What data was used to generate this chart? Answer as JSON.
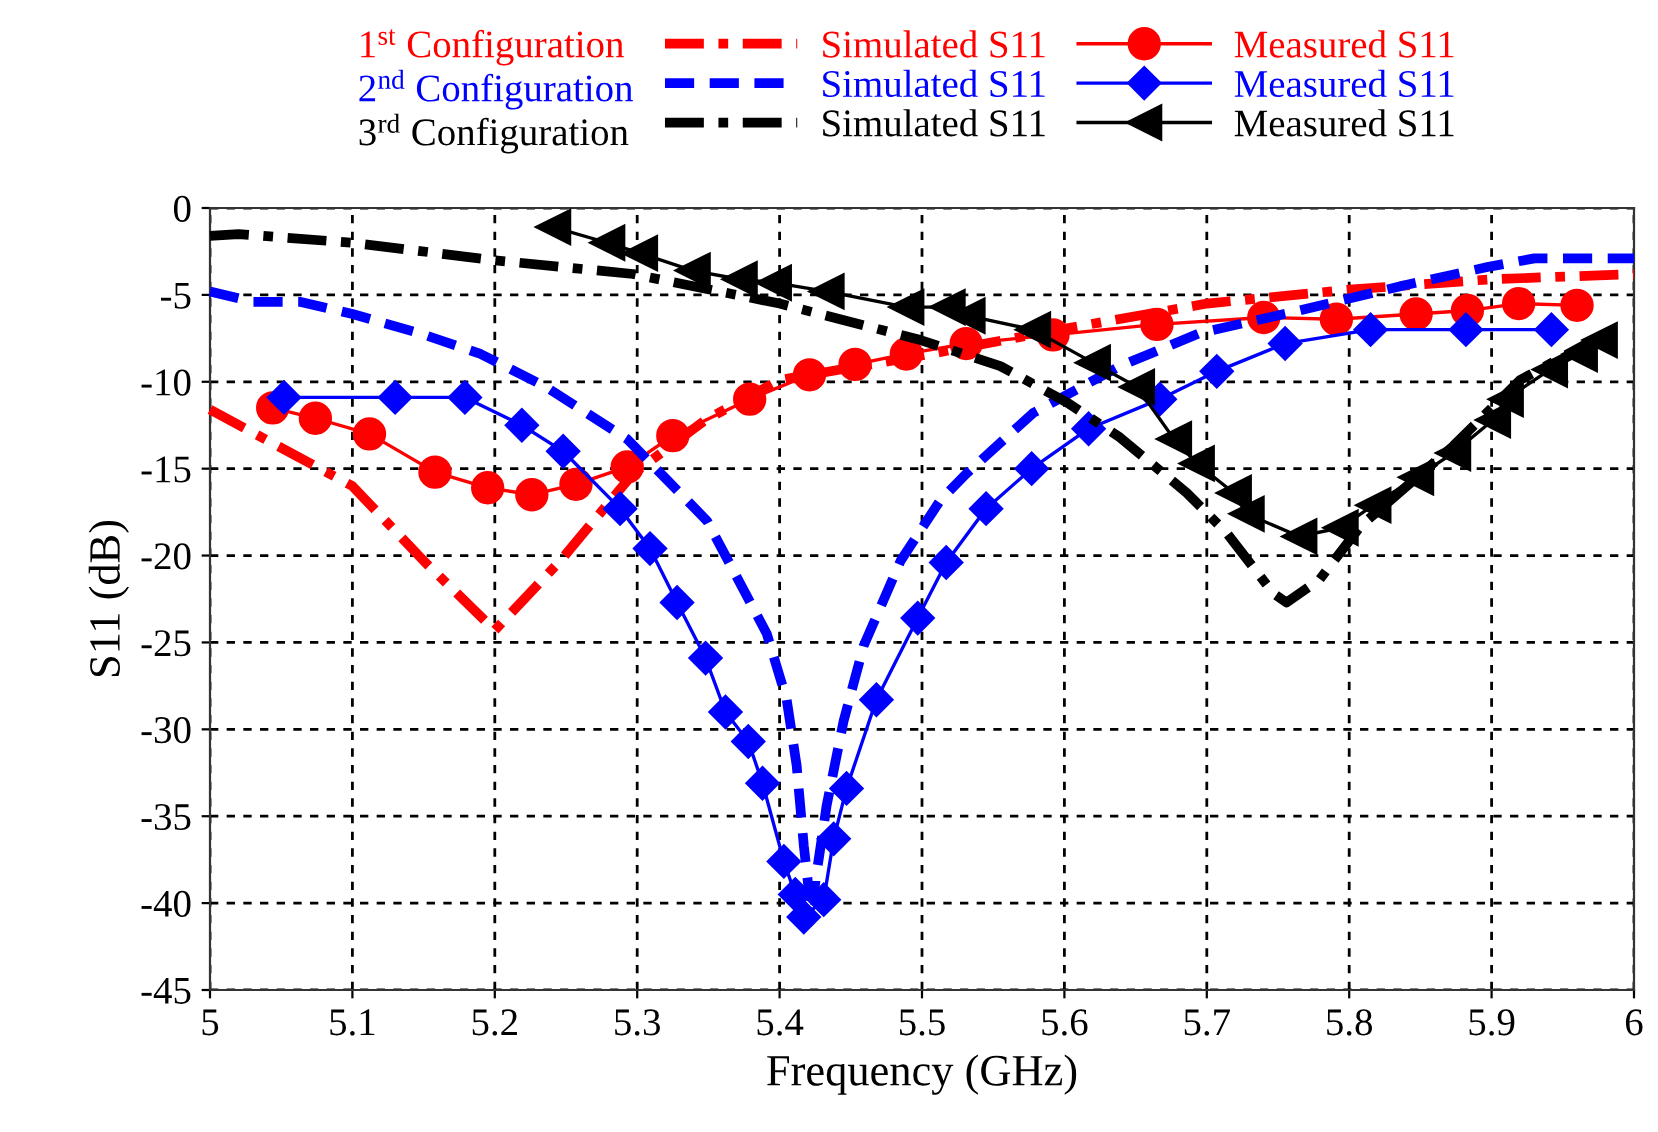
{
  "chart_data": {
    "type": "line",
    "xlabel": "Frequency (GHz)",
    "ylabel": "S11 (dB)",
    "xlim": [
      5,
      6
    ],
    "ylim": [
      -45,
      0
    ],
    "xticks": [
      5,
      5.1,
      5.2,
      5.3,
      5.4,
      5.5,
      5.6,
      5.7,
      5.8,
      5.9,
      6
    ],
    "yticks": [
      -45,
      -40,
      -35,
      -30,
      -25,
      -20,
      -15,
      -10,
      -5,
      0
    ],
    "grid": true,
    "legend": "top",
    "annotations": [
      "1$^{st}$ Configuration",
      "2$^{nd}$ Configuration",
      "3$^{rd}$ Configuration"
    ],
    "series": [
      {
        "name": "Simulated S11",
        "color": "#ff0000",
        "line_style": "dashdot",
        "marker": "none",
        "x": [
          5.0,
          5.1,
          5.15,
          5.2,
          5.246,
          5.297,
          5.348,
          5.4,
          5.499,
          5.597,
          5.7,
          5.8,
          5.9,
          6.0
        ],
        "values": [
          -11.6,
          -16.0,
          -20.3,
          -24.3,
          -20.3,
          -15.3,
          -12.2,
          -9.9,
          -8.5,
          -7.0,
          -5.5,
          -4.7,
          -4.1,
          -3.8
        ]
      },
      {
        "name": "Measured S11",
        "color": "#ff0000",
        "line_style": "solid",
        "marker": "circle",
        "x": [
          5.044,
          5.074,
          5.112,
          5.158,
          5.195,
          5.226,
          5.257,
          5.293,
          5.325,
          5.379,
          5.421,
          5.453,
          5.489,
          5.531,
          5.592,
          5.665,
          5.74,
          5.791,
          5.847,
          5.883,
          5.919,
          5.96
        ],
        "values": [
          -11.5,
          -12.1,
          -13.0,
          -15.2,
          -16.1,
          -16.5,
          -15.9,
          -14.9,
          -13.1,
          -11.0,
          -9.6,
          -9.0,
          -8.4,
          -7.8,
          -7.3,
          -6.7,
          -6.3,
          -6.4,
          -6.1,
          -5.9,
          -5.5,
          -5.6
        ]
      },
      {
        "name": "Simulated S11",
        "color": "#0000ff",
        "line_style": "dashed",
        "marker": "none",
        "x": [
          5.0,
          5.03,
          5.063,
          5.1,
          5.147,
          5.19,
          5.236,
          5.293,
          5.349,
          5.391,
          5.405,
          5.412,
          5.417,
          5.42,
          5.424,
          5.433,
          5.445,
          5.459,
          5.485,
          5.513,
          5.531,
          5.578,
          5.639,
          5.695,
          5.765,
          5.836,
          5.897,
          5.93,
          6.0
        ],
        "values": [
          -4.8,
          -5.4,
          -5.4,
          -6.1,
          -7.2,
          -8.4,
          -10.3,
          -13.3,
          -18.0,
          -24.5,
          -28.3,
          -32.1,
          -36.7,
          -38.9,
          -39.4,
          -34.4,
          -29.5,
          -25.2,
          -20.3,
          -16.8,
          -15.3,
          -11.8,
          -9.1,
          -7.2,
          -5.9,
          -4.5,
          -3.4,
          -2.9,
          -2.9
        ]
      },
      {
        "name": "Measured S11",
        "color": "#0000ff",
        "line_style": "solid",
        "marker": "diamond",
        "x": [
          5.052,
          5.13,
          5.179,
          5.219,
          5.248,
          5.288,
          5.309,
          5.328,
          5.348,
          5.362,
          5.378,
          5.388,
          5.403,
          5.411,
          5.417,
          5.431,
          5.438,
          5.447,
          5.468,
          5.497,
          5.517,
          5.545,
          5.577,
          5.617,
          5.667,
          5.707,
          5.755,
          5.815,
          5.882,
          5.942
        ],
        "values": [
          -10.9,
          -10.9,
          -10.9,
          -12.5,
          -14.0,
          -17.3,
          -19.6,
          -22.7,
          -25.9,
          -29.0,
          -30.7,
          -33.1,
          -37.6,
          -39.5,
          -40.8,
          -39.8,
          -36.3,
          -33.4,
          -28.3,
          -23.6,
          -20.4,
          -17.3,
          -15.0,
          -12.7,
          -11.0,
          -9.4,
          -7.8,
          -7.0,
          -7.0,
          -7.0
        ]
      },
      {
        "name": "Simulated S11",
        "color": "#000000",
        "line_style": "dashdot",
        "marker": "none",
        "x": [
          5.0,
          5.02,
          5.1,
          5.199,
          5.297,
          5.4,
          5.499,
          5.555,
          5.602,
          5.639,
          5.686,
          5.714,
          5.747,
          5.756,
          5.779,
          5.808,
          5.873,
          5.92,
          5.976
        ],
        "values": [
          -1.6,
          -1.5,
          -2.0,
          -3.0,
          -3.8,
          -5.5,
          -7.6,
          -9.1,
          -11.2,
          -13.2,
          -16.4,
          -18.7,
          -22.2,
          -22.7,
          -21.4,
          -18.3,
          -13.7,
          -9.9,
          -7.4
        ]
      },
      {
        "name": "Measured S11",
        "color": "#000000",
        "line_style": "solid",
        "marker": "triangle",
        "x": [
          5.241,
          5.279,
          5.302,
          5.339,
          5.372,
          5.396,
          5.433,
          5.489,
          5.518,
          5.532,
          5.578,
          5.62,
          5.651,
          5.677,
          5.693,
          5.719,
          5.728,
          5.765,
          5.794,
          5.817,
          5.847,
          5.873,
          5.901,
          5.91,
          5.941,
          5.962,
          5.976
        ],
        "values": [
          -1.1,
          -2.0,
          -2.6,
          -3.6,
          -4.1,
          -4.3,
          -4.8,
          -5.7,
          -5.7,
          -6.2,
          -7.0,
          -8.9,
          -10.3,
          -13.3,
          -14.7,
          -16.4,
          -17.6,
          -18.9,
          -18.4,
          -17.1,
          -15.5,
          -14.1,
          -12.2,
          -11.0,
          -9.3,
          -8.4,
          -7.6
        ]
      }
    ]
  }
}
